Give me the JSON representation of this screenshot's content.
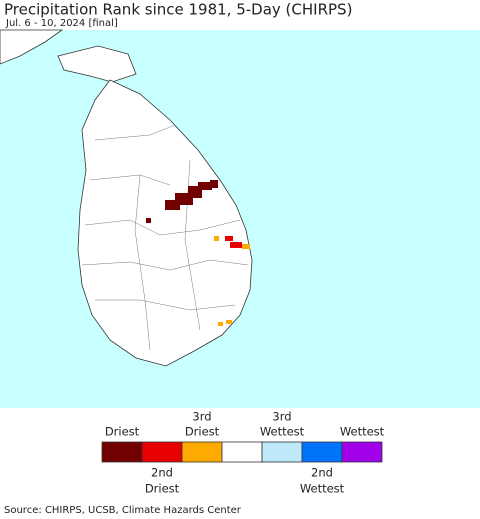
{
  "title": "Precipitation Rank since 1981, 5-Day (CHIRPS)",
  "subtitle": "Jul. 6 - 10, 2024 [final]",
  "legend": {
    "items": [
      {
        "color": "#720000",
        "label_top": [
          "Driest"
        ],
        "label_bottom": null
      },
      {
        "color": "#e80000",
        "label_top": null,
        "label_bottom": [
          "2nd",
          "Driest"
        ]
      },
      {
        "color": "#ffaa00",
        "label_top": [
          "3rd",
          "Driest"
        ],
        "label_bottom": null
      },
      {
        "color": "#ffffff",
        "label_top": null,
        "label_bottom": null
      },
      {
        "color": "#bde9fb",
        "label_top": [
          "3rd",
          "Wettest"
        ],
        "label_bottom": null
      },
      {
        "color": "#0074f8",
        "label_top": null,
        "label_bottom": [
          "2nd",
          "Wettest"
        ]
      },
      {
        "color": "#a200e8",
        "label_top": [
          "Wettest"
        ],
        "label_bottom": null
      }
    ]
  },
  "source": "Source: CHIRPS, UCSB, Climate Hazards Center"
}
